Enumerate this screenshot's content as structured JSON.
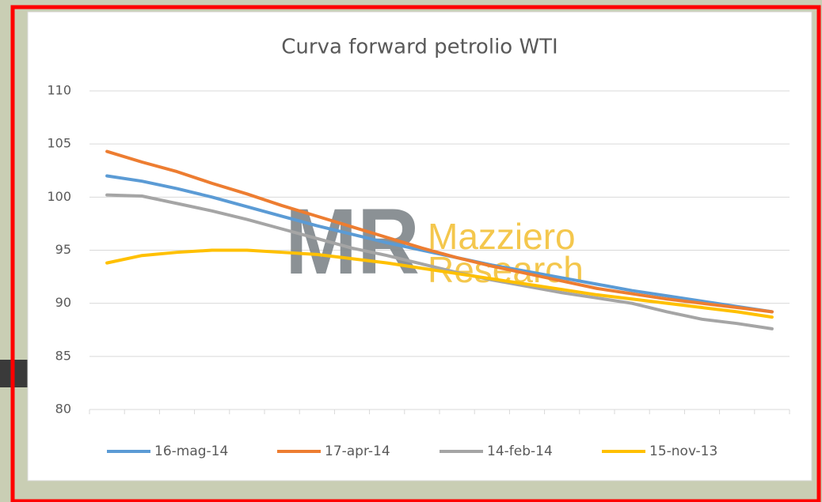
{
  "chart_data": {
    "type": "line",
    "title": "Curva forward petrolio WTI",
    "categories": [
      null,
      null,
      null,
      null,
      null,
      null,
      null,
      null,
      null,
      null,
      null,
      null,
      null,
      null,
      null,
      null,
      null,
      null,
      null,
      null
    ],
    "series": [
      {
        "name": "16-mag-14",
        "color": "#5b9bd5",
        "values": [
          102.0,
          101.5,
          100.8,
          100.0,
          99.1,
          98.2,
          97.3,
          96.5,
          95.7,
          95.0,
          94.3,
          93.6,
          93.0,
          92.4,
          91.8,
          91.2,
          90.7,
          90.2,
          89.7,
          89.2
        ]
      },
      {
        "name": "17-apr-14",
        "color": "#ed7d31",
        "values": [
          104.3,
          103.3,
          102.4,
          101.3,
          100.3,
          99.2,
          98.2,
          97.2,
          96.2,
          95.2,
          94.3,
          93.5,
          92.8,
          92.1,
          91.4,
          90.9,
          90.4,
          90.0,
          89.6,
          89.2
        ]
      },
      {
        "name": "14-feb-14",
        "color": "#a5a5a5",
        "values": [
          100.2,
          100.1,
          99.4,
          98.7,
          97.9,
          97.0,
          96.1,
          95.2,
          94.5,
          93.7,
          92.9,
          92.2,
          91.6,
          91.0,
          90.5,
          90.0,
          89.2,
          88.5,
          88.1,
          87.6
        ]
      },
      {
        "name": "15-nov-13",
        "color": "#ffc000",
        "values": [
          93.8,
          94.5,
          94.8,
          95.0,
          95.0,
          94.8,
          94.6,
          94.2,
          93.8,
          93.3,
          92.8,
          92.3,
          91.8,
          91.3,
          90.8,
          90.4,
          90.0,
          89.6,
          89.2,
          88.7
        ]
      }
    ],
    "ylim": [
      80,
      110
    ],
    "yticks": [
      80,
      85,
      90,
      95,
      100,
      105,
      110
    ],
    "grid": true,
    "legend": "bottom",
    "watermark": {
      "logo": "MR",
      "line1": "Mazziero",
      "line2": "Research"
    }
  }
}
